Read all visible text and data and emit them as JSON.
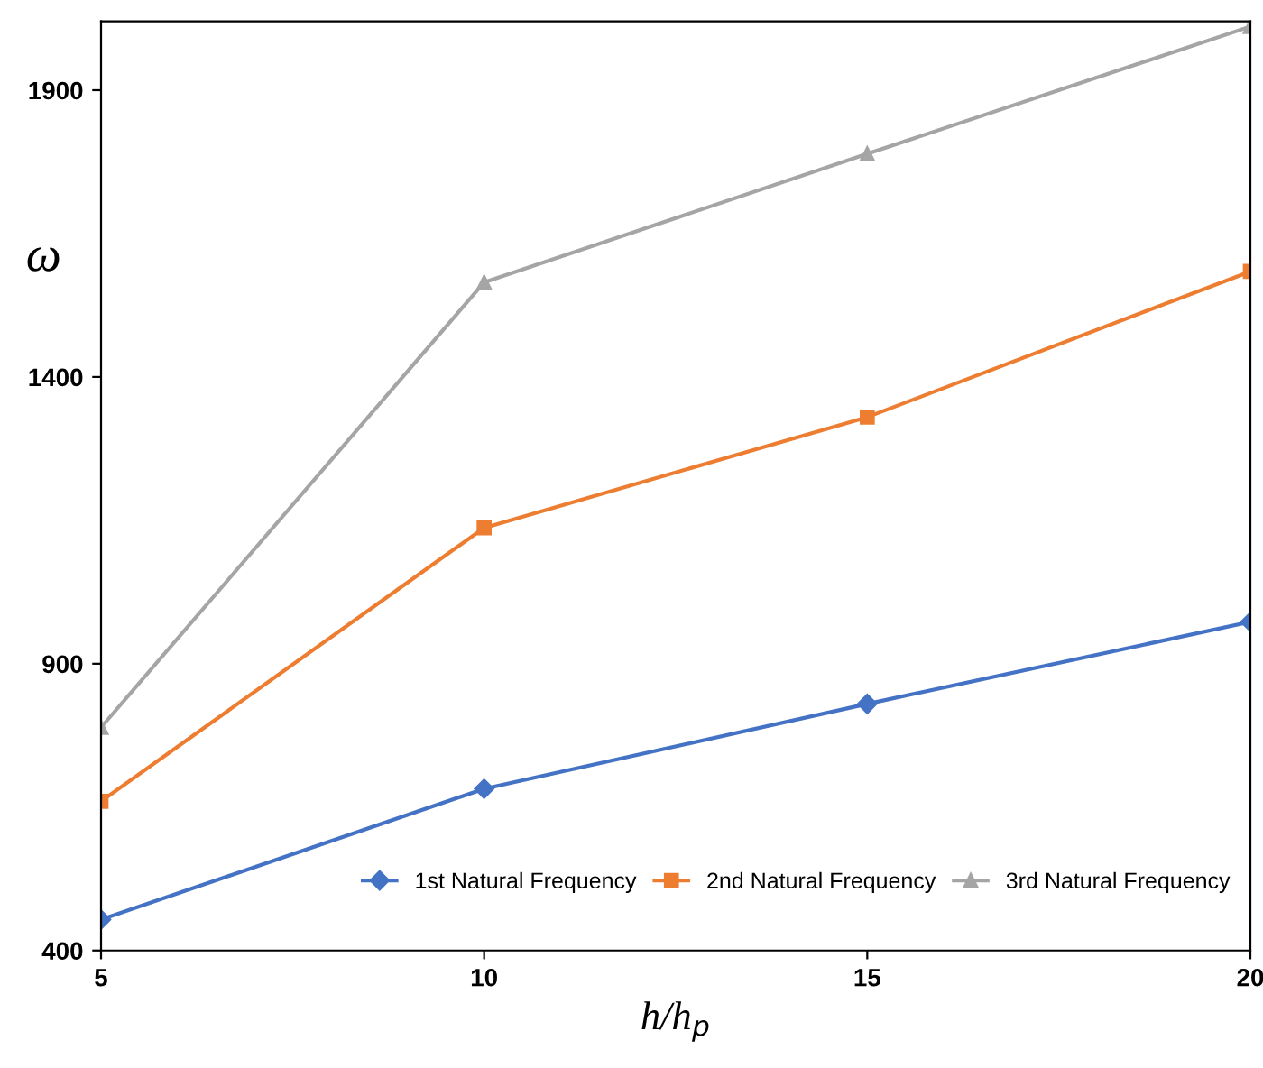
{
  "chart_data": {
    "type": "line",
    "xlabel": "h/h$_{p}$",
    "ylabel": "ω",
    "x": [
      5,
      10,
      15,
      20
    ],
    "series": [
      {
        "name": "1st Natural Frequency",
        "color": "#4472c4",
        "marker": "diamond",
        "values": [
          454,
          682,
          830,
          973
        ]
      },
      {
        "name": "2nd Natural Frequency",
        "color": "#ed7d31",
        "marker": "square",
        "values": [
          660,
          1137,
          1330,
          1584
        ]
      },
      {
        "name": "3rd Natural Frequency",
        "color": "#a5a5a5",
        "marker": "triangle",
        "values": [
          789,
          1565,
          1789,
          2011
        ]
      }
    ],
    "xlim": [
      5,
      20
    ],
    "xticks": [
      5,
      10,
      15,
      20
    ],
    "ylim": [
      400,
      2020
    ],
    "yticks": [
      400,
      900,
      1400,
      1900
    ],
    "grid": false,
    "legend": "bottom right",
    "line_style": "solid"
  }
}
